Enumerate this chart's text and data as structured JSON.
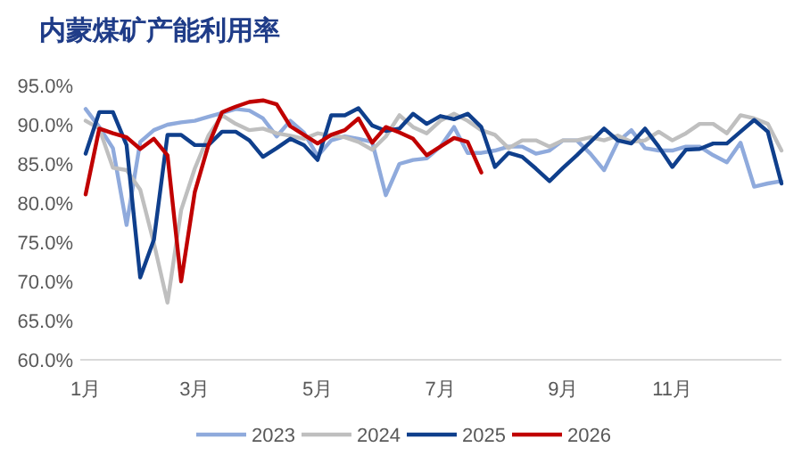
{
  "chart_data": {
    "type": "line",
    "title": "内蒙煤矿产能利用率",
    "categories": [
      "1月",
      null,
      null,
      null,
      null,
      null,
      null,
      null,
      "3月",
      null,
      null,
      null,
      null,
      null,
      null,
      null,
      null,
      "5月",
      null,
      null,
      null,
      null,
      null,
      null,
      null,
      null,
      "7月",
      null,
      null,
      null,
      null,
      null,
      null,
      null,
      null,
      "9月",
      null,
      null,
      null,
      null,
      null,
      null,
      null,
      "11月",
      null,
      null,
      null,
      null,
      null,
      null,
      null,
      null
    ],
    "ylim": [
      60,
      95
    ],
    "yticks": [
      {
        "value": 60,
        "label": "60.0%"
      },
      {
        "value": 65,
        "label": "65.0%"
      },
      {
        "value": 70,
        "label": "70.0%"
      },
      {
        "value": 75,
        "label": "75.0%"
      },
      {
        "value": 80,
        "label": "80.0%"
      },
      {
        "value": 85,
        "label": "85.0%"
      },
      {
        "value": 90,
        "label": "90.0%"
      },
      {
        "value": 95,
        "label": "95.0%"
      }
    ],
    "legend": "bottom",
    "grid": false,
    "marker": "none",
    "line_style": "solid",
    "series": [
      {
        "name": "2023",
        "color": "#8faadc",
        "values": [
          92,
          89.7,
          87,
          77.2,
          87.8,
          89.3,
          90,
          90.3,
          90.5,
          91,
          91.5,
          92,
          91.8,
          90.8,
          88.5,
          90.5,
          89,
          86,
          88,
          88.5,
          88.2,
          87.8,
          81,
          85,
          85.5,
          85.7,
          87.2,
          89.7,
          86.4,
          86.4,
          86.7,
          87.2,
          87.2,
          86.3,
          86.7,
          88,
          88,
          86.3,
          84.2,
          87.8,
          89.3,
          87,
          86.7,
          86.7,
          87.2,
          87.2,
          86.1,
          85.2,
          87.7,
          82.1,
          82.5,
          82.8
        ]
      },
      {
        "name": "2024",
        "color": "#bfbfbf",
        "values": [
          90.5,
          89.5,
          84.5,
          84.2,
          81.7,
          74.9,
          67.3,
          79.1,
          84.4,
          88.6,
          91.2,
          90.1,
          89.3,
          89.5,
          88.9,
          88.6,
          88.2,
          88.9,
          88.6,
          88.4,
          87.8,
          86.8,
          88.5,
          91.2,
          89.7,
          88.9,
          90.5,
          91.4,
          90.5,
          89.3,
          88.7,
          87,
          88,
          88,
          87.2,
          88,
          88,
          88.4,
          88,
          88.6,
          87.8,
          88,
          89.1,
          88,
          88.9,
          90.1,
          90.1,
          88.9,
          91.2,
          90.8,
          90.1,
          86.7
        ]
      },
      {
        "name": "2025",
        "color": "#0f3f8c",
        "values": [
          86.3,
          91.6,
          91.6,
          87.4,
          70.5,
          75.3,
          88.7,
          88.7,
          87.4,
          87.4,
          89.1,
          89.1,
          88,
          85.9,
          87,
          88.2,
          87.4,
          85.5,
          91.2,
          91.2,
          92.1,
          89.9,
          89.2,
          89.5,
          91.4,
          90.1,
          91.1,
          90.7,
          91.4,
          89.7,
          84.6,
          86.4,
          85.9,
          84.4,
          82.8,
          84.5,
          86.1,
          87.8,
          89.5,
          88,
          87.6,
          89.5,
          87.2,
          84.6,
          86.8,
          86.9,
          87.6,
          87.6,
          89.1,
          90.6,
          89.1,
          82.5
        ]
      },
      {
        "name": "2026",
        "color": "#c00000",
        "values": [
          81.1,
          89.5,
          88.9,
          88.4,
          86.9,
          88.2,
          86.1,
          70,
          81.4,
          87.4,
          91.6,
          92.3,
          92.9,
          93.1,
          92.6,
          89.8,
          88.7,
          87.6,
          88.7,
          89.3,
          90.8,
          87.7,
          89.7,
          89,
          88.2,
          86.1,
          87.2,
          88.3,
          87.8,
          83.9,
          null,
          null,
          null,
          null,
          null,
          null,
          null,
          null,
          null,
          null,
          null,
          null,
          null,
          null,
          null,
          null,
          null,
          null,
          null,
          null,
          null,
          null
        ]
      }
    ]
  }
}
